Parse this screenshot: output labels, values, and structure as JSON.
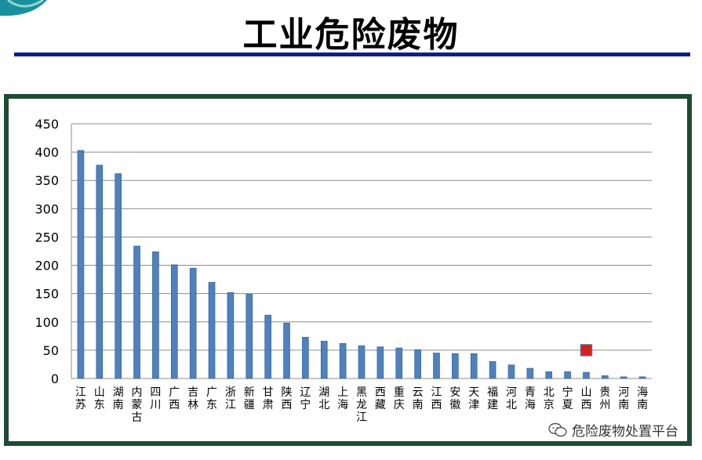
{
  "page": {
    "title": "工业危险废物",
    "watermark": "危险废物处置平台",
    "watermark_icon": "wechat-icon"
  },
  "colors": {
    "title_rule": "#0b1f86",
    "frame_border": "#1f4a35",
    "bar_fill": "#4f81bd",
    "bar_edge": "#2f5a8c",
    "gridline": "#8c8c8c",
    "marker_fill": "#d91c1c",
    "marker_edge": "#6a6a8a"
  },
  "chart_data": {
    "type": "bar",
    "title": "",
    "xlabel": "",
    "ylabel": "",
    "ylim": [
      0,
      450
    ],
    "yticks": [
      0,
      50,
      100,
      150,
      200,
      250,
      300,
      350,
      400,
      450
    ],
    "grid": true,
    "categories": [
      "江苏",
      "山东",
      "湖南",
      "内蒙古",
      "四川",
      "广西",
      "吉林",
      "广东",
      "浙江",
      "新疆",
      "甘肃",
      "陕西",
      "辽宁",
      "湖北",
      "上海",
      "黑龙江",
      "西藏",
      "重庆",
      "云南",
      "江西",
      "安徽",
      "天津",
      "福建",
      "河北",
      "青海",
      "北京",
      "宁夏",
      "山西",
      "贵州",
      "河南",
      "海南"
    ],
    "values": [
      403,
      377,
      362,
      234,
      224,
      201,
      195,
      170,
      152,
      149,
      112,
      98,
      73,
      66,
      62,
      58,
      56,
      54,
      51,
      45,
      44,
      44,
      30,
      24,
      18,
      12,
      12,
      11,
      5,
      3,
      3
    ],
    "marker": {
      "category": "山西",
      "value": 50
    }
  }
}
